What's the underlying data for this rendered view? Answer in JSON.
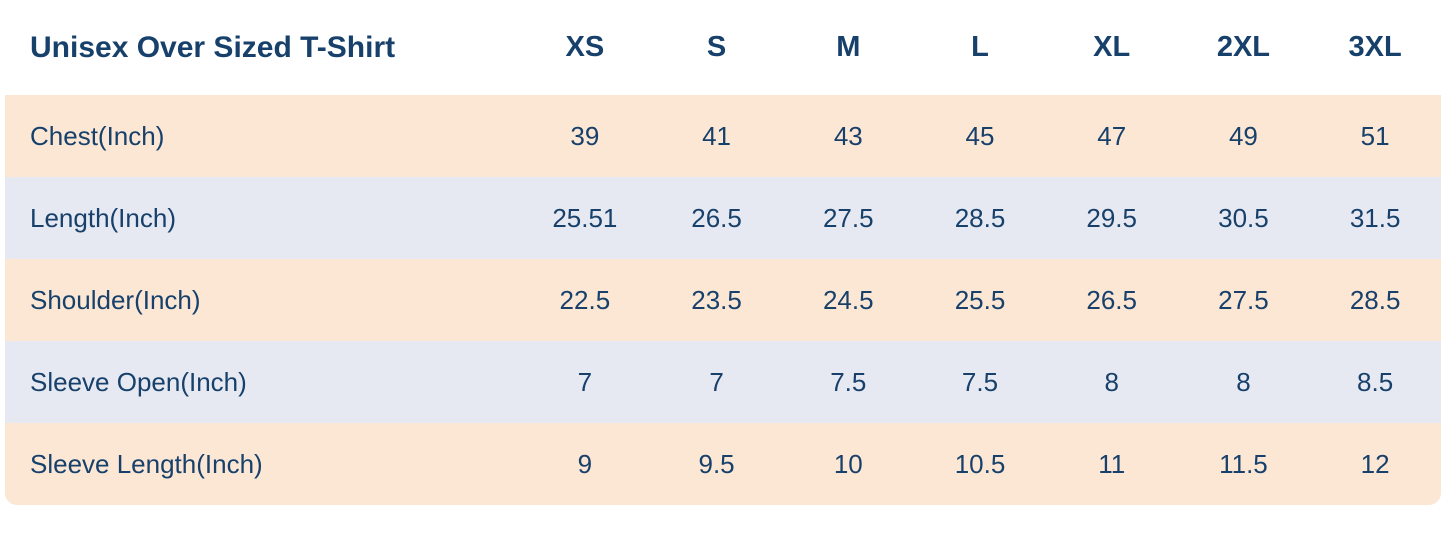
{
  "chart_data": {
    "type": "table",
    "title": "Unisex Over Sized T-Shirt",
    "columns": [
      "XS",
      "S",
      "M",
      "L",
      "XL",
      "2XL",
      "3XL"
    ],
    "rows": [
      {
        "label": "Chest(Inch)",
        "values": [
          "39",
          "41",
          "43",
          "45",
          "47",
          "49",
          "51"
        ]
      },
      {
        "label": "Length(Inch)",
        "values": [
          "25.51",
          "26.5",
          "27.5",
          "28.5",
          "29.5",
          "30.5",
          "31.5"
        ]
      },
      {
        "label": "Shoulder(Inch)",
        "values": [
          "22.5",
          "23.5",
          "24.5",
          "25.5",
          "26.5",
          "27.5",
          "28.5"
        ]
      },
      {
        "label": "Sleeve Open(Inch)",
        "values": [
          "7",
          "7",
          "7.5",
          "7.5",
          "8",
          "8",
          "8.5"
        ]
      },
      {
        "label": "Sleeve Length(Inch)",
        "values": [
          "9",
          "9.5",
          "10",
          "10.5",
          "11",
          "11.5",
          "12"
        ]
      }
    ],
    "layout": {
      "legend": "none",
      "grid": "off",
      "row_stripe_colors": [
        "#fce7d5",
        "#e6e9f2"
      ],
      "text_color": "#17406b",
      "background": "#ffffff"
    }
  }
}
